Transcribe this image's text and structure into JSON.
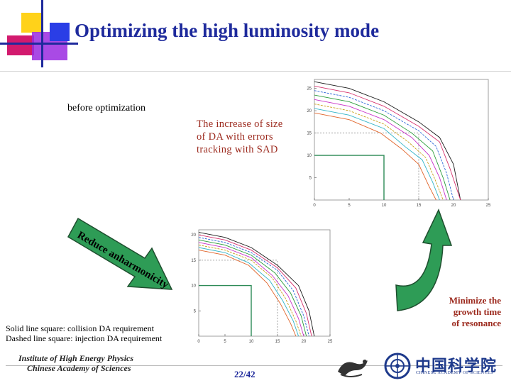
{
  "slide": {
    "title": "Optimizing the high luminosity mode",
    "before_label": "before optimization",
    "increase_lines": [
      "The increase of size",
      "of DA with errors",
      "tracking with SAD"
    ],
    "arrow_text": "Reduce anharmonicity",
    "legend_lines": [
      "Solid line square: collision DA requirement",
      "Dashed line square: injection DA requirement"
    ],
    "minimize_lines": [
      "Minimize the",
      "growth time",
      "of resonance"
    ],
    "page_number": "22/42"
  },
  "footer": {
    "institute_line1": "Institute of High Energy Physics",
    "institute_line2": "Chinese Academy of Sciences",
    "cas_chinese": "中国科学院",
    "cas_english": "CHINESE ACADEMY OF SCIENCES"
  },
  "colors": {
    "title": "#1e2a9c",
    "accent_text": "#9c2a1e",
    "arrow_green": "#2e9c56",
    "arrow_outline": "#1f4f2f",
    "square_requirement": "#2e8b57"
  },
  "icons": [
    "logo-squares-icon",
    "dragon-logo-icon",
    "cas-emblem-icon"
  ],
  "chart_data": [
    {
      "type": "line",
      "title": "",
      "xlabel": "",
      "ylabel": "",
      "x_ticks": [
        "0",
        "5",
        "10",
        "15",
        "20",
        "25"
      ],
      "y_ticks": [
        "25",
        "20",
        "15",
        "10",
        "5"
      ],
      "xlim": [
        0,
        25
      ],
      "ylim": [
        0,
        27
      ],
      "series": [
        {
          "x": [
            0,
            5,
            10,
            15,
            18,
            20,
            21
          ],
          "y": [
            26.5,
            25,
            22,
            17.5,
            14,
            8,
            0
          ]
        },
        {
          "x": [
            0,
            5,
            10,
            15,
            18,
            19.5,
            21
          ],
          "y": [
            25.5,
            24,
            21,
            16.5,
            13,
            7,
            0
          ]
        },
        {
          "x": [
            0,
            5,
            10,
            15,
            17.5,
            19,
            20
          ],
          "y": [
            24.5,
            23,
            20,
            15.5,
            12,
            6,
            0
          ]
        },
        {
          "x": [
            0,
            5,
            10,
            14,
            17,
            18.5,
            19.5
          ],
          "y": [
            23.5,
            22,
            19,
            15,
            11,
            5,
            0
          ]
        },
        {
          "x": [
            0,
            5,
            10,
            14,
            16.5,
            18,
            19
          ],
          "y": [
            22.5,
            21,
            18,
            14,
            10,
            5,
            0
          ]
        },
        {
          "x": [
            0,
            5,
            10,
            13.5,
            16,
            17.5,
            18.5
          ],
          "y": [
            21.5,
            20,
            17,
            13,
            9.5,
            4,
            0
          ]
        },
        {
          "x": [
            0,
            5,
            10,
            13,
            15.5,
            17,
            18
          ],
          "y": [
            20.5,
            19,
            16,
            12,
            9,
            4,
            0
          ]
        },
        {
          "x": [
            0,
            5,
            9.5,
            12.5,
            15,
            16.5,
            17.5
          ],
          "y": [
            19.5,
            18,
            15,
            11.5,
            8,
            3,
            0
          ]
        }
      ],
      "requirement_box": {
        "x": 10,
        "y": 10
      },
      "injection_box": {
        "x": 15,
        "y": 15
      }
    },
    {
      "type": "line",
      "title": "",
      "xlabel": "",
      "ylabel": "",
      "x_ticks": [
        "0",
        "5",
        "10",
        "15",
        "20",
        "25"
      ],
      "y_ticks": [
        "20",
        "15",
        "10",
        "5"
      ],
      "xlim": [
        0,
        25
      ],
      "ylim": [
        0,
        21
      ],
      "series": [
        {
          "x": [
            0,
            5,
            10,
            15,
            19,
            21,
            22
          ],
          "y": [
            20.5,
            19.5,
            17.5,
            14,
            10,
            5,
            0
          ]
        },
        {
          "x": [
            0,
            5,
            10,
            15,
            18.5,
            20.5,
            21.5
          ],
          "y": [
            20,
            19,
            17,
            13.5,
            9.5,
            4.5,
            0
          ]
        },
        {
          "x": [
            0,
            5,
            10,
            15,
            18,
            20,
            21
          ],
          "y": [
            19.5,
            18.5,
            16.5,
            13,
            9,
            4,
            0
          ]
        },
        {
          "x": [
            0,
            5,
            10,
            14.5,
            17.5,
            19.5,
            20.5
          ],
          "y": [
            19,
            18,
            16,
            12.5,
            8.5,
            4,
            0
          ]
        },
        {
          "x": [
            0,
            5,
            10,
            14,
            17,
            19,
            20
          ],
          "y": [
            18.5,
            17.5,
            15.5,
            12,
            8,
            3.5,
            0
          ]
        },
        {
          "x": [
            0,
            5,
            10,
            14,
            16.5,
            18.5,
            19.5
          ],
          "y": [
            18,
            17,
            15,
            11.5,
            7.5,
            3,
            0
          ]
        },
        {
          "x": [
            0,
            5,
            9.5,
            13.5,
            16,
            18,
            19
          ],
          "y": [
            17.5,
            16.5,
            14.5,
            11,
            7,
            3,
            0
          ]
        },
        {
          "x": [
            0,
            5,
            9.5,
            13,
            15.5,
            17.5,
            18.5
          ],
          "y": [
            17,
            16,
            14,
            10.5,
            6.5,
            2.5,
            0
          ]
        }
      ],
      "requirement_box": {
        "x": 10,
        "y": 10
      },
      "injection_box": {
        "x": 15,
        "y": 15
      }
    }
  ]
}
